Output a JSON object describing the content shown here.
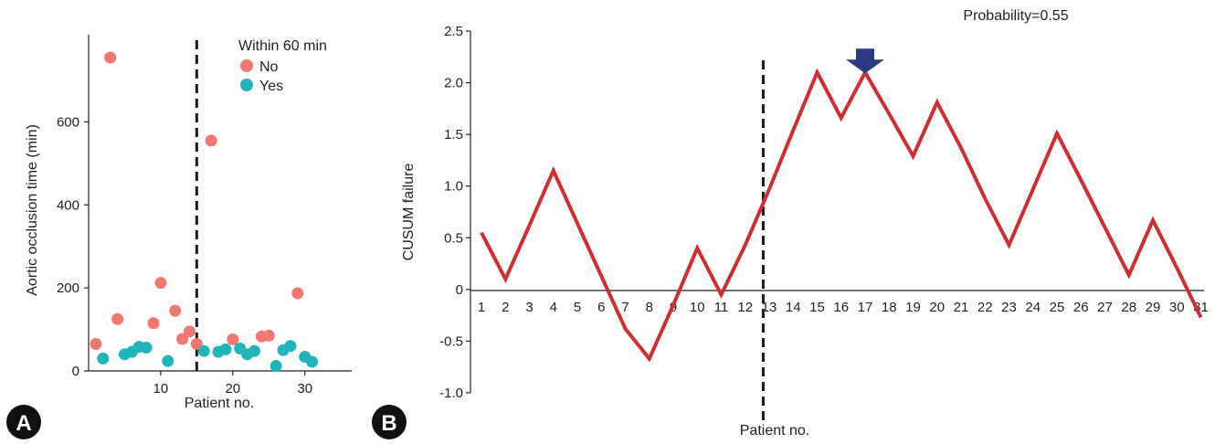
{
  "panels": {
    "a_label": "A",
    "b_label": "B"
  },
  "chart_data": [
    {
      "type": "scatter",
      "panel": "A",
      "title": "",
      "xlabel": "Patient no.",
      "ylabel": "Aortic occlusion time (min)",
      "xlim": [
        0,
        36.5
      ],
      "ylim": [
        0,
        810
      ],
      "xticks": [
        10,
        20,
        30
      ],
      "yticks": [
        0,
        200,
        400,
        600
      ],
      "cutoff_x": 15,
      "legend": {
        "title": "Within 60 min",
        "position": "top-right"
      },
      "series": [
        {
          "name": "No",
          "color": "#f07870",
          "points": [
            [
              1,
              65
            ],
            [
              3,
              755
            ],
            [
              4,
              125
            ],
            [
              9,
              115
            ],
            [
              10,
              212
            ],
            [
              12,
              145
            ],
            [
              13,
              77
            ],
            [
              14,
              95
            ],
            [
              15,
              65
            ],
            [
              17,
              555
            ],
            [
              20,
              76
            ],
            [
              24,
              83
            ],
            [
              25,
              85
            ],
            [
              29,
              187
            ]
          ]
        },
        {
          "name": "Yes",
          "color": "#20b5bb",
          "points": [
            [
              2,
              30
            ],
            [
              5,
              40
            ],
            [
              6,
              46
            ],
            [
              7,
              58
            ],
            [
              8,
              56
            ],
            [
              11,
              24
            ],
            [
              16,
              48
            ],
            [
              18,
              46
            ],
            [
              19,
              52
            ],
            [
              21,
              54
            ],
            [
              22,
              40
            ],
            [
              23,
              48
            ],
            [
              26,
              12
            ],
            [
              27,
              50
            ],
            [
              28,
              60
            ],
            [
              30,
              34
            ],
            [
              31,
              22
            ]
          ]
        }
      ]
    },
    {
      "type": "line",
      "panel": "B",
      "title": "",
      "xlabel": "Patient no.",
      "ylabel": "CUSUM failure",
      "annotation": "Probability=0.55",
      "ylim": [
        -1.0,
        2.5
      ],
      "yticks": [
        "2.5",
        "2.0",
        "1.5",
        "1.0",
        "0.5",
        "0",
        "-0.5",
        "-1.0"
      ],
      "x": [
        1,
        2,
        3,
        4,
        5,
        6,
        7,
        8,
        9,
        10,
        11,
        12,
        13,
        14,
        15,
        16,
        17,
        18,
        19,
        20,
        21,
        22,
        23,
        24,
        25,
        26,
        27,
        28,
        29,
        30,
        31
      ],
      "series": [
        {
          "color": "#d02d32",
          "values": [
            0.55,
            0.1,
            0.62,
            1.15,
            0.64,
            0.13,
            -0.38,
            -0.67,
            -0.15,
            0.4,
            -0.05,
            0.43,
            0.97,
            1.54,
            2.1,
            1.66,
            2.1,
            1.7,
            1.29,
            1.81,
            1.37,
            0.88,
            0.43,
            0.97,
            1.51,
            1.06,
            0.6,
            0.14,
            0.67,
            0.21,
            -0.27
          ]
        }
      ],
      "cutoff_x": 12.75,
      "marker": {
        "x": 17,
        "shape": "down-arrow",
        "color": "#2a3a86"
      }
    }
  ]
}
